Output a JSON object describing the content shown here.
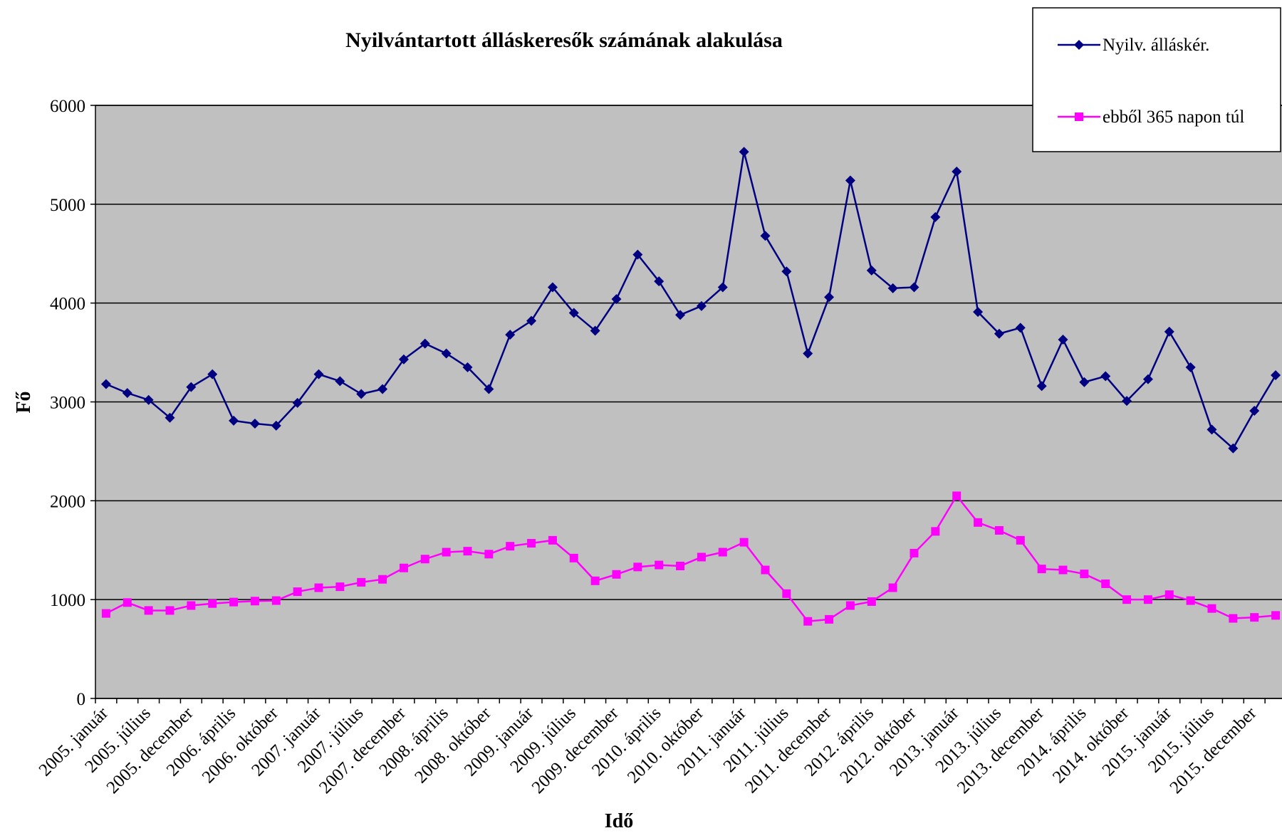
{
  "chart_data": {
    "type": "line",
    "title": "Nyilvántartott álláskeresők számának alakulása",
    "xlabel": "Idő",
    "ylabel": "Fő",
    "categories": [
      "2005. január",
      null,
      "2005. július",
      null,
      "2005. december",
      null,
      "2006. április",
      null,
      "2006. október",
      null,
      "2007. január",
      null,
      "2007. július",
      null,
      "2007. december",
      null,
      "2008. április",
      null,
      "2008. október",
      null,
      "2009. január",
      null,
      "2009. július",
      null,
      "2009. december",
      null,
      "2010. április",
      null,
      "2010. október",
      null,
      "2011. január",
      null,
      "2011. július",
      null,
      "2011. december",
      null,
      "2012. április",
      null,
      "2012. október",
      null,
      "2013. január",
      null,
      "2013. július",
      null,
      "2013. december",
      null,
      "2014. április",
      null,
      "2014. október",
      null,
      "2015. január",
      null,
      "2015. július",
      null,
      "2015. december",
      null
    ],
    "series": [
      {
        "name": "Nyilv. álláskér.",
        "color": "#000080",
        "marker": "diamond",
        "values": [
          3180,
          3090,
          3020,
          2840,
          3150,
          3280,
          2810,
          2780,
          2760,
          2990,
          3280,
          3210,
          3080,
          3130,
          3430,
          3590,
          3490,
          3350,
          3130,
          3680,
          3820,
          4160,
          3900,
          3720,
          4040,
          4490,
          4220,
          3880,
          3970,
          4160,
          5530,
          4680,
          4320,
          3490,
          4060,
          5240,
          4330,
          4150,
          4160,
          4870,
          5330,
          3910,
          3690,
          3750,
          3160,
          3630,
          3200,
          3260,
          3010,
          3230,
          3710,
          3350,
          2720,
          2530,
          2910,
          3270
        ]
      },
      {
        "name": "ebből 365 napon túl",
        "color": "#ff00ff",
        "marker": "square",
        "values": [
          860,
          970,
          890,
          890,
          940,
          960,
          975,
          985,
          990,
          1080,
          1120,
          1130,
          1175,
          1205,
          1320,
          1410,
          1480,
          1490,
          1460,
          1540,
          1570,
          1600,
          1420,
          1190,
          1255,
          1330,
          1350,
          1340,
          1430,
          1480,
          1580,
          1300,
          1060,
          780,
          800,
          940,
          980,
          1120,
          1470,
          1690,
          2050,
          1780,
          1700,
          1600,
          1310,
          1300,
          1260,
          1160,
          1000,
          1000,
          1050,
          990,
          910,
          810,
          820,
          840
        ]
      }
    ],
    "ylim": [
      0,
      6000
    ],
    "yticks": [
      0,
      1000,
      2000,
      3000,
      4000,
      5000,
      6000
    ],
    "grid": true,
    "plot_background": "#c0c0c0",
    "legend": "upper right"
  }
}
